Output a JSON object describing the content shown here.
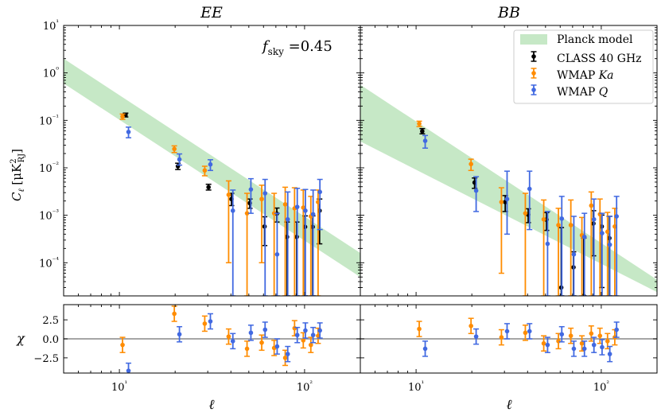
{
  "chart_data": [
    {
      "type": "scatter",
      "title": "EE",
      "annotation": "f_sky =0.45",
      "xlabel": "ℓ",
      "ylabel": "C_ℓ [μK²_RJ]",
      "xscale": "log",
      "yscale": "log",
      "xlim": [
        5,
        200
      ],
      "ylim": [
        2e-05,
        10
      ],
      "xticks": [
        "10¹",
        "10²"
      ],
      "yticks": [
        "10⁻⁴",
        "10⁻³",
        "10⁻²",
        "10⁻¹",
        "10⁰",
        "10¹"
      ],
      "grid": false,
      "model_band": {
        "name": "Planck model",
        "lower": [
          [
            5,
            0.6
          ],
          [
            200,
            5e-05
          ]
        ],
        "upper": [
          [
            5,
            2.0
          ],
          [
            200,
            0.00016
          ]
        ]
      },
      "series": [
        {
          "name": "CLASS 40 GHz",
          "color": "#000000",
          "points": [
            {
              "x": 10.8,
              "y": 0.13,
              "ylo": 0.118,
              "yhi": 0.142
            },
            {
              "x": 20.7,
              "y": 0.0108,
              "ylo": 0.0092,
              "yhi": 0.0125
            },
            {
              "x": 30.3,
              "y": 0.0039,
              "ylo": 0.0034,
              "yhi": 0.0045
            },
            {
              "x": 40.3,
              "y": 0.0022,
              "ylo": 0.0016,
              "yhi": 0.0029
            },
            {
              "x": 50.6,
              "y": 0.0018,
              "ylo": 0.0014,
              "yhi": 0.0022
            },
            {
              "x": 60.8,
              "y": 0.00058,
              "ylo": 0.00023,
              "yhi": 0.00093
            },
            {
              "x": 70.8,
              "y": 0.00108,
              "ylo": 0.00072,
              "yhi": 0.00142
            },
            {
              "x": 80.4,
              "y": 0.00035,
              "ylo": 2e-05,
              "yhi": 0.00072
            },
            {
              "x": 90.7,
              "y": 0.00035,
              "ylo": 2e-05,
              "yhi": 0.00072
            },
            {
              "x": 100.6,
              "y": 0.00057,
              "ylo": 2e-05,
              "yhi": 0.00097
            },
            {
              "x": 110.6,
              "y": 0.00057,
              "ylo": 2e-05,
              "yhi": 0.00097
            },
            {
              "x": 120.5,
              "y": 0.00125,
              "ylo": 0.00025,
              "yhi": 0.0022
            }
          ]
        },
        {
          "name": "WMAP Ka",
          "color": "#ff8c00",
          "points": [
            {
              "x": 10.4,
              "y": 0.12,
              "ylo": 0.105,
              "yhi": 0.136
            },
            {
              "x": 19.8,
              "y": 0.025,
              "ylo": 0.021,
              "yhi": 0.029
            },
            {
              "x": 28.9,
              "y": 0.0088,
              "ylo": 0.0068,
              "yhi": 0.0108
            },
            {
              "x": 38.9,
              "y": 0.0027,
              "ylo": 0.0001,
              "yhi": 0.0053
            },
            {
              "x": 48.9,
              "y": 0.0011,
              "ylo": 2e-05,
              "yhi": 0.0029
            },
            {
              "x": 58.7,
              "y": 0.0022,
              "ylo": 0.0001,
              "yhi": 0.0043
            },
            {
              "x": 68.5,
              "y": 0.0011,
              "ylo": 2e-05,
              "yhi": 0.0029
            },
            {
              "x": 78.6,
              "y": 0.0017,
              "ylo": 2e-05,
              "yhi": 0.0039
            },
            {
              "x": 88.3,
              "y": 0.0014,
              "ylo": 2e-05,
              "yhi": 0.0038
            },
            {
              "x": 98.4,
              "y": 0.00145,
              "ylo": 2e-05,
              "yhi": 0.0034
            },
            {
              "x": 108.1,
              "y": 0.00095,
              "ylo": 2e-05,
              "yhi": 0.0025
            },
            {
              "x": 118.3,
              "y": 0.0019,
              "ylo": 2e-05,
              "yhi": 0.0034
            }
          ]
        },
        {
          "name": "WMAP Q",
          "color": "#4169e1",
          "points": [
            {
              "x": 11.2,
              "y": 0.057,
              "ylo": 0.043,
              "yhi": 0.072
            },
            {
              "x": 21.1,
              "y": 0.015,
              "ylo": 0.0114,
              "yhi": 0.0196
            },
            {
              "x": 31.0,
              "y": 0.0118,
              "ylo": 0.0088,
              "yhi": 0.0148
            },
            {
              "x": 41.0,
              "y": 0.00125,
              "ylo": 2e-05,
              "yhi": 0.0034
            },
            {
              "x": 51.3,
              "y": 0.0035,
              "ylo": 0.0011,
              "yhi": 0.0059
            },
            {
              "x": 61.2,
              "y": 0.0029,
              "ylo": 2e-05,
              "yhi": 0.0057
            },
            {
              "x": 71.1,
              "y": 0.00015,
              "ylo": 2e-05,
              "yhi": 0.0011
            },
            {
              "x": 81.1,
              "y": 0.00082,
              "ylo": 2e-05,
              "yhi": 0.0031
            },
            {
              "x": 91.3,
              "y": 0.0015,
              "ylo": 2e-05,
              "yhi": 0.0037
            },
            {
              "x": 101.0,
              "y": 0.00125,
              "ylo": 2e-05,
              "yhi": 0.0035
            },
            {
              "x": 111.2,
              "y": 0.00105,
              "ylo": 2e-05,
              "yhi": 0.0034
            },
            {
              "x": 121.0,
              "y": 0.0031,
              "ylo": 0.0005,
              "yhi": 0.0057
            }
          ]
        }
      ]
    },
    {
      "type": "scatter",
      "title": "BB",
      "xlabel": "ℓ",
      "xscale": "log",
      "yscale": "log",
      "xlim": [
        5,
        200
      ],
      "ylim": [
        2e-05,
        10
      ],
      "xticks": [
        "10¹",
        "10²"
      ],
      "grid": false,
      "legend": {
        "placement": "top-right",
        "entries": [
          "Planck model",
          "CLASS 40 GHz",
          "WMAP Ka",
          "WMAP Q"
        ]
      },
      "model_band": {
        "name": "Planck model",
        "lower": [
          [
            5,
            0.036
          ],
          [
            200,
            2.4e-05
          ]
        ],
        "upper": [
          [
            5,
            0.56
          ],
          [
            200,
            4.4e-05
          ]
        ]
      },
      "series": [
        {
          "name": "CLASS 40 GHz",
          "color": "#000000",
          "points": [
            {
              "x": 10.8,
              "y": 0.059,
              "ylo": 0.052,
              "yhi": 0.067
            },
            {
              "x": 20.7,
              "y": 0.0049,
              "ylo": 0.0037,
              "yhi": 0.0061
            },
            {
              "x": 30.3,
              "y": 0.0019,
              "ylo": 0.0012,
              "yhi": 0.0026
            },
            {
              "x": 40.3,
              "y": 0.00103,
              "ylo": 0.0007,
              "yhi": 0.00137
            },
            {
              "x": 50.6,
              "y": 0.00081,
              "ylo": 0.00048,
              "yhi": 0.00114
            },
            {
              "x": 60.8,
              "y": 3e-05,
              "ylo": 2e-05,
              "yhi": 0.00055
            },
            {
              "x": 70.8,
              "y": 8e-05,
              "ylo": 2e-05,
              "yhi": 0.00017
            },
            {
              "x": 80.4,
              "y": 2e-05,
              "ylo": 2e-05,
              "yhi": 0.00033
            },
            {
              "x": 90.7,
              "y": 0.00067,
              "ylo": 0.00014,
              "yhi": 0.00125
            },
            {
              "x": 100.6,
              "y": 0.00058,
              "ylo": 3e-05,
              "yhi": 0.00101
            },
            {
              "x": 110.6,
              "y": 0.00033,
              "ylo": 2e-05,
              "yhi": 0.00095
            }
          ]
        },
        {
          "name": "WMAP Ka",
          "color": "#ff8c00",
          "points": [
            {
              "x": 10.4,
              "y": 0.085,
              "ylo": 0.074,
              "yhi": 0.096
            },
            {
              "x": 19.8,
              "y": 0.012,
              "ylo": 0.0088,
              "yhi": 0.0152
            },
            {
              "x": 28.9,
              "y": 0.0019,
              "ylo": 6e-05,
              "yhi": 0.0038
            },
            {
              "x": 38.9,
              "y": 0.0011,
              "ylo": 2e-05,
              "yhi": 0.0029
            },
            {
              "x": 48.9,
              "y": 0.00082,
              "ylo": 2e-05,
              "yhi": 0.0021
            },
            {
              "x": 58.7,
              "y": 0.00062,
              "ylo": 2e-05,
              "yhi": 0.0014
            },
            {
              "x": 68.5,
              "y": 0.00062,
              "ylo": 2e-05,
              "yhi": 0.0021
            },
            {
              "x": 78.6,
              "y": 0.00038,
              "ylo": 2e-05,
              "yhi": 0.0009
            },
            {
              "x": 88.3,
              "y": 0.0016,
              "ylo": 2e-05,
              "yhi": 0.0031
            },
            {
              "x": 98.4,
              "y": 0.00105,
              "ylo": 2e-05,
              "yhi": 0.0022
            },
            {
              "x": 108.1,
              "y": 0.00045,
              "ylo": 2e-05,
              "yhi": 0.00115
            },
            {
              "x": 118.3,
              "y": 0.00058,
              "ylo": 2e-05,
              "yhi": 0.0014
            }
          ]
        },
        {
          "name": "WMAP Q",
          "color": "#4169e1",
          "points": [
            {
              "x": 11.2,
              "y": 0.037,
              "ylo": 0.026,
              "yhi": 0.048
            },
            {
              "x": 21.1,
              "y": 0.0033,
              "ylo": 0.0012,
              "yhi": 0.0065
            },
            {
              "x": 31.0,
              "y": 0.0022,
              "ylo": 0.0004,
              "yhi": 0.0085
            },
            {
              "x": 41.0,
              "y": 0.0036,
              "ylo": 0.0005,
              "yhi": 0.0085
            },
            {
              "x": 51.3,
              "y": 0.00025,
              "ylo": 2e-05,
              "yhi": 0.0012
            },
            {
              "x": 61.2,
              "y": 0.00085,
              "ylo": 2e-05,
              "yhi": 0.0025
            },
            {
              "x": 71.1,
              "y": 0.00015,
              "ylo": 2e-05,
              "yhi": 0.00095
            },
            {
              "x": 81.1,
              "y": 0.00035,
              "ylo": 2e-05,
              "yhi": 0.0011
            },
            {
              "x": 91.3,
              "y": 0.00082,
              "ylo": 2e-05,
              "yhi": 0.0022
            },
            {
              "x": 101.0,
              "y": 0.00042,
              "ylo": 2e-05,
              "yhi": 0.0011
            },
            {
              "x": 111.2,
              "y": 0.00024,
              "ylo": 2e-05,
              "yhi": 0.00095
            },
            {
              "x": 121.0,
              "y": 0.00095,
              "ylo": 2e-05,
              "yhi": 0.0025
            }
          ]
        }
      ]
    },
    {
      "type": "scatter",
      "title": "",
      "xlabel": "ℓ",
      "ylabel": "χ",
      "xscale": "log",
      "xlim": [
        5,
        200
      ],
      "ylim": [
        -4.5,
        4.5
      ],
      "yticks": [
        "2.5",
        "0.0",
        "−2.5"
      ],
      "reference_line": 0,
      "series": [
        {
          "name": "WMAP Ka",
          "color": "#ff8c00",
          "points": [
            {
              "x": 10.4,
              "y": -0.8,
              "ylo": -1.8,
              "yhi": 0.2
            },
            {
              "x": 19.8,
              "y": 3.3,
              "ylo": 2.3,
              "yhi": 4.3
            },
            {
              "x": 28.9,
              "y": 2.0,
              "ylo": 1.0,
              "yhi": 3.0
            },
            {
              "x": 38.9,
              "y": 0.3,
              "ylo": -0.7,
              "yhi": 1.3
            },
            {
              "x": 48.9,
              "y": -1.3,
              "ylo": -2.3,
              "yhi": -0.3
            },
            {
              "x": 58.7,
              "y": -0.5,
              "ylo": -1.5,
              "yhi": 0.5
            },
            {
              "x": 68.5,
              "y": -1.2,
              "ylo": -2.2,
              "yhi": -0.2
            },
            {
              "x": 78.6,
              "y": -2.5,
              "ylo": -3.5,
              "yhi": -1.5
            },
            {
              "x": 88.3,
              "y": 1.4,
              "ylo": 0.4,
              "yhi": 2.4
            },
            {
              "x": 98.4,
              "y": -0.2,
              "ylo": -1.2,
              "yhi": 0.8
            },
            {
              "x": 108.1,
              "y": -0.8,
              "ylo": -1.8,
              "yhi": 0.2
            },
            {
              "x": 118.3,
              "y": 0.4,
              "ylo": -0.6,
              "yhi": 1.4
            }
          ]
        },
        {
          "name": "WMAP Q",
          "color": "#4169e1",
          "points": [
            {
              "x": 11.2,
              "y": -4.2,
              "ylo": -5.2,
              "yhi": -3.2
            },
            {
              "x": 21.1,
              "y": 0.6,
              "ylo": -0.4,
              "yhi": 1.6
            },
            {
              "x": 31.0,
              "y": 2.3,
              "ylo": 1.3,
              "yhi": 3.3
            },
            {
              "x": 41.0,
              "y": -0.3,
              "ylo": -1.3,
              "yhi": 0.7
            },
            {
              "x": 51.3,
              "y": 0.8,
              "ylo": -0.2,
              "yhi": 1.8
            },
            {
              "x": 61.2,
              "y": 1.2,
              "ylo": 0.2,
              "yhi": 2.2
            },
            {
              "x": 71.1,
              "y": -1.0,
              "ylo": -2.0,
              "yhi": 0.0
            },
            {
              "x": 81.1,
              "y": -2.0,
              "ylo": -3.0,
              "yhi": -1.0
            },
            {
              "x": 91.3,
              "y": 0.5,
              "ylo": -0.5,
              "yhi": 1.5
            },
            {
              "x": 101.0,
              "y": 1.1,
              "ylo": 0.1,
              "yhi": 2.1
            },
            {
              "x": 111.2,
              "y": 0.5,
              "ylo": -0.5,
              "yhi": 1.5
            },
            {
              "x": 121.0,
              "y": 1.1,
              "ylo": 0.1,
              "yhi": 2.1
            }
          ]
        }
      ]
    },
    {
      "type": "scatter",
      "title": "",
      "xlabel": "ℓ",
      "xscale": "log",
      "xlim": [
        5,
        200
      ],
      "ylim": [
        -4.5,
        4.5
      ],
      "reference_line": 0,
      "series": [
        {
          "name": "WMAP Ka",
          "color": "#ff8c00",
          "points": [
            {
              "x": 10.4,
              "y": 1.3,
              "ylo": 0.3,
              "yhi": 2.3
            },
            {
              "x": 19.8,
              "y": 1.7,
              "ylo": 0.7,
              "yhi": 2.7
            },
            {
              "x": 28.9,
              "y": 0.2,
              "ylo": -0.8,
              "yhi": 1.2
            },
            {
              "x": 38.9,
              "y": 0.8,
              "ylo": -0.2,
              "yhi": 1.8
            },
            {
              "x": 48.9,
              "y": -0.6,
              "ylo": -1.6,
              "yhi": 0.4
            },
            {
              "x": 58.7,
              "y": -0.3,
              "ylo": -1.3,
              "yhi": 0.7
            },
            {
              "x": 68.5,
              "y": 0.4,
              "ylo": -0.6,
              "yhi": 1.4
            },
            {
              "x": 78.6,
              "y": -0.6,
              "ylo": -1.6,
              "yhi": 0.4
            },
            {
              "x": 88.3,
              "y": 0.7,
              "ylo": -0.3,
              "yhi": 1.7
            },
            {
              "x": 98.4,
              "y": 0.4,
              "ylo": -0.6,
              "yhi": 1.4
            },
            {
              "x": 108.1,
              "y": -0.3,
              "ylo": -1.3,
              "yhi": 0.7
            },
            {
              "x": 118.3,
              "y": 0.2,
              "ylo": -0.8,
              "yhi": 1.2
            }
          ]
        },
        {
          "name": "WMAP Q",
          "color": "#4169e1",
          "points": [
            {
              "x": 11.2,
              "y": -1.3,
              "ylo": -2.3,
              "yhi": -0.3
            },
            {
              "x": 21.1,
              "y": 0.3,
              "ylo": -0.7,
              "yhi": 1.3
            },
            {
              "x": 31.0,
              "y": 1.0,
              "ylo": 0.0,
              "yhi": 2.0
            },
            {
              "x": 41.0,
              "y": 1.0,
              "ylo": 0.0,
              "yhi": 2.0
            },
            {
              "x": 51.3,
              "y": -0.8,
              "ylo": -1.8,
              "yhi": 0.2
            },
            {
              "x": 61.2,
              "y": 0.6,
              "ylo": -0.4,
              "yhi": 1.6
            },
            {
              "x": 71.1,
              "y": -1.3,
              "ylo": -2.3,
              "yhi": -0.3
            },
            {
              "x": 81.1,
              "y": -1.3,
              "ylo": -2.3,
              "yhi": -0.3
            },
            {
              "x": 91.3,
              "y": -0.8,
              "ylo": -1.8,
              "yhi": 0.2
            },
            {
              "x": 101.0,
              "y": -1.1,
              "ylo": -2.1,
              "yhi": -0.1
            },
            {
              "x": 111.2,
              "y": -2.0,
              "ylo": -3.0,
              "yhi": -1.0
            },
            {
              "x": 121.0,
              "y": 1.2,
              "ylo": 0.2,
              "yhi": 2.2
            }
          ]
        }
      ]
    }
  ],
  "colors": {
    "band": "#c6e8c6",
    "class": "#000000",
    "ka": "#ff8c00",
    "q": "#4169e1",
    "reference": "#888888"
  }
}
